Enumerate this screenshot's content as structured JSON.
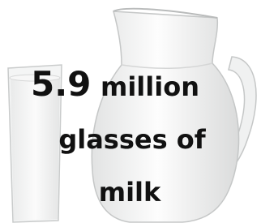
{
  "headline": {
    "number": 5.9,
    "lines": [
      "million",
      "glasses of",
      "milk"
    ]
  }
}
